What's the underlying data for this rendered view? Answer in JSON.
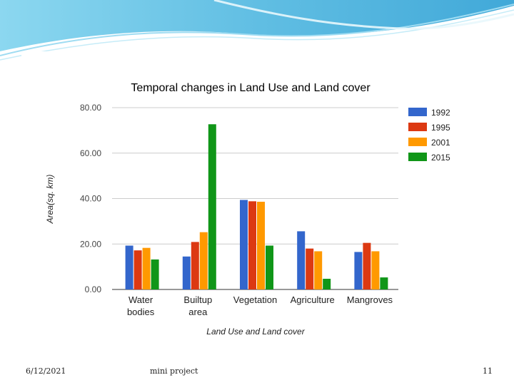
{
  "chart_data": {
    "type": "bar",
    "title": "Temporal changes in Land Use and Land cover",
    "xlabel": "Land Use and Land cover",
    "ylabel": "Area(sq. km)",
    "ylim": [
      0,
      80
    ],
    "yticks": [
      "0.00",
      "20.00",
      "40.00",
      "60.00",
      "80.00"
    ],
    "ytick_values": [
      0,
      20,
      40,
      60,
      80
    ],
    "categories": [
      [
        "Water",
        "bodies"
      ],
      [
        "Builtup",
        "area"
      ],
      [
        "Vegetation"
      ],
      [
        "Agriculture"
      ],
      [
        "Mangroves"
      ]
    ],
    "series": [
      {
        "name": "1992",
        "color": "#3366cc",
        "values": [
          19.3,
          14.5,
          39.4,
          25.6,
          16.5
        ]
      },
      {
        "name": "1995",
        "color": "#dc3912",
        "values": [
          17.2,
          20.9,
          38.8,
          18.0,
          20.5
        ]
      },
      {
        "name": "2001",
        "color": "#ff9900",
        "values": [
          18.3,
          25.2,
          38.6,
          16.8,
          16.8
        ]
      },
      {
        "name": "2015",
        "color": "#109618",
        "values": [
          13.2,
          72.7,
          19.3,
          4.7,
          5.3
        ]
      }
    ],
    "legend_position": "right",
    "grid": true
  },
  "footer": {
    "date": "6/12/2021",
    "title": "mini project",
    "page": "11"
  }
}
